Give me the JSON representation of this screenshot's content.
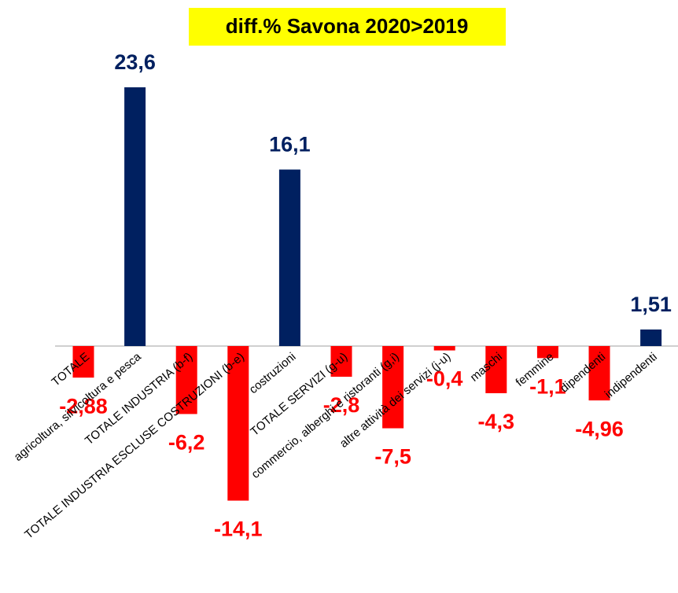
{
  "chart_data": {
    "type": "bar",
    "title": "diff.% Savona 2020>2019",
    "categories": [
      "TOTALE",
      "agricoltura, silvicoltura e pesca",
      "TOTALE INDUSTRIA (b-f)",
      "TOTALE INDUSTRIA ESCLUSE COSTRUZIONI (b-e)",
      "costruzioni",
      "TOTALE SERVIZI (g-u)",
      "commercio, alberghi e ristoranti (g,i)",
      "altre attività dei servizi (j-u)",
      "maschi",
      "femmine",
      "dipendenti",
      "indipendenti"
    ],
    "values": [
      -2.88,
      23.6,
      -6.2,
      -14.1,
      16.1,
      -2.8,
      -7.5,
      -0.4,
      -4.3,
      -1.1,
      -4.96,
      1.51
    ],
    "value_labels": [
      "-2,88",
      "23,6",
      "-6,2",
      "-14,1",
      "16,1",
      "-2,8",
      "-7,5",
      "-0,4",
      "-4,3",
      "-1,1",
      "-4,96",
      "1,51"
    ],
    "positive_color": "#002060",
    "negative_color": "#ff0000"
  }
}
